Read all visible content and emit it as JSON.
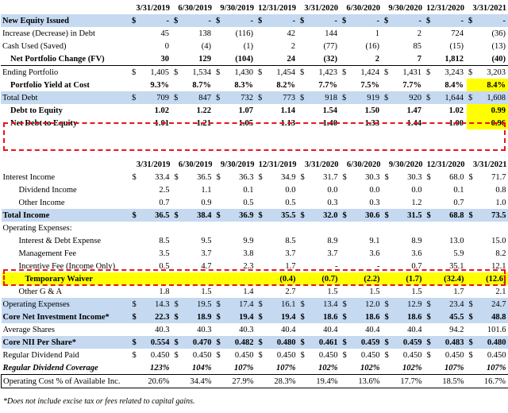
{
  "headers": [
    "3/31/2019",
    "6/30/2019",
    "9/30/2019",
    "12/31/2019",
    "3/31/2020",
    "6/30/2020",
    "9/30/2020",
    "12/31/2020",
    "3/31/2021"
  ],
  "section1": [
    {
      "label": "New Equity Issued",
      "cs": [
        "$",
        "$",
        "$",
        "$",
        "$",
        "$",
        "$",
        "$",
        "$"
      ],
      "values": [
        "-",
        "-",
        "-",
        "-",
        "-",
        "-",
        "-",
        "-",
        "-"
      ],
      "style": "blue b",
      "indent": 0
    },
    {
      "label": "Increase (Decrease) in Debt",
      "cs": [
        "",
        "",
        "",
        "",
        "",
        "",
        "",
        "",
        ""
      ],
      "values": [
        "45",
        "138",
        "(116)",
        "42",
        "144",
        "1",
        "2",
        "724",
        "(36)"
      ],
      "style": "",
      "indent": 0
    },
    {
      "label": "Cash Used (Saved)",
      "cs": [
        "",
        "",
        "",
        "",
        "",
        "",
        "",
        "",
        ""
      ],
      "values": [
        "0",
        "(4)",
        "(1)",
        "2",
        "(77)",
        "(16)",
        "85",
        "(15)",
        "(13)"
      ],
      "style": "",
      "indent": 0
    },
    {
      "label": "Net Portfolio Change (FV)",
      "cs": [
        "",
        "",
        "",
        "",
        "",
        "",
        "",
        "",
        ""
      ],
      "values": [
        "30",
        "129",
        "(104)",
        "24",
        "(32)",
        "2",
        "7",
        "1,812",
        "(40)"
      ],
      "style": "b",
      "indent": 1
    },
    {
      "label": "Ending Portfolio",
      "cs": [
        "$",
        "$",
        "$",
        "$",
        "$",
        "$",
        "$",
        "$",
        "$"
      ],
      "values": [
        "1,405",
        "1,534",
        "1,430",
        "1,454",
        "1,423",
        "1,424",
        "1,431",
        "3,243",
        "3,203"
      ],
      "style": "bt",
      "indent": 0
    },
    {
      "label": "Portfolio Yield at Cost",
      "cs": [
        "",
        "",
        "",
        "",
        "",
        "",
        "",
        "",
        ""
      ],
      "values": [
        "9.3%",
        "8.7%",
        "8.3%",
        "8.2%",
        "7.7%",
        "7.5%",
        "7.7%",
        "8.4%",
        "8.4%"
      ],
      "style": "b",
      "indent": 1,
      "hl_last": true
    },
    {
      "label": "Total Debt",
      "cs": [
        "$",
        "$",
        "$",
        "$",
        "$",
        "$",
        "$",
        "$",
        "$"
      ],
      "values": [
        "709",
        "847",
        "732",
        "773",
        "918",
        "919",
        "920",
        "1,644",
        "1,608"
      ],
      "style": "blue",
      "indent": 0
    },
    {
      "label": "Debt to Equity",
      "cs": [
        "",
        "",
        "",
        "",
        "",
        "",
        "",
        "",
        ""
      ],
      "values": [
        "1.02",
        "1.22",
        "1.07",
        "1.14",
        "1.54",
        "1.50",
        "1.47",
        "1.02",
        "0.99"
      ],
      "style": "b",
      "indent": 1,
      "hl_last": true
    },
    {
      "label": "Net Debt to Equity",
      "cs": [
        "",
        "",
        "",
        "",
        "",
        "",
        "",
        "",
        ""
      ],
      "values": [
        "1.01",
        "1.21",
        "1.05",
        "1.13",
        "1.40",
        "1.33",
        "1.44",
        "1.00",
        "0.96"
      ],
      "style": "b",
      "indent": 1,
      "hl_last": true
    }
  ],
  "section2": [
    {
      "label": "Interest Income",
      "cs": [
        "$",
        "$",
        "$",
        "$",
        "$",
        "$",
        "$",
        "$",
        "$"
      ],
      "values": [
        "33.4",
        "36.5",
        "36.3",
        "34.9",
        "31.7",
        "30.3",
        "30.3",
        "68.0",
        "71.7"
      ],
      "style": "",
      "indent": 0
    },
    {
      "label": "Dividend Income",
      "cs": [
        "",
        "",
        "",
        "",
        "",
        "",
        "",
        "",
        ""
      ],
      "values": [
        "2.5",
        "1.1",
        "0.1",
        "0.0",
        "0.0",
        "0.0",
        "0.0",
        "0.1",
        "0.8"
      ],
      "style": "",
      "indent": 2
    },
    {
      "label": "Other Income",
      "cs": [
        "",
        "",
        "",
        "",
        "",
        "",
        "",
        "",
        ""
      ],
      "values": [
        "0.7",
        "0.9",
        "0.5",
        "0.5",
        "0.3",
        "0.3",
        "1.2",
        "0.7",
        "1.0"
      ],
      "style": "",
      "indent": 2
    },
    {
      "label": "Total Income",
      "cs": [
        "$",
        "$",
        "$",
        "$",
        "$",
        "$",
        "$",
        "$",
        "$"
      ],
      "values": [
        "36.5",
        "38.4",
        "36.9",
        "35.5",
        "32.0",
        "30.6",
        "31.5",
        "68.8",
        "73.5"
      ],
      "style": "blue b",
      "indent": 0
    },
    {
      "label": "Operating Expenses:",
      "cs": [
        "",
        "",
        "",
        "",
        "",
        "",
        "",
        "",
        ""
      ],
      "values": [
        "",
        "",
        "",
        "",
        "",
        "",
        "",
        "",
        ""
      ],
      "style": "",
      "indent": 0
    },
    {
      "label": "Interest & Debt Expense",
      "cs": [
        "",
        "",
        "",
        "",
        "",
        "",
        "",
        "",
        ""
      ],
      "values": [
        "8.5",
        "9.5",
        "9.9",
        "8.5",
        "8.9",
        "9.1",
        "8.9",
        "13.0",
        "15.0"
      ],
      "style": "",
      "indent": 2
    },
    {
      "label": "Management Fee",
      "cs": [
        "",
        "",
        "",
        "",
        "",
        "",
        "",
        "",
        ""
      ],
      "values": [
        "3.5",
        "3.7",
        "3.8",
        "3.7",
        "3.7",
        "3.6",
        "3.6",
        "5.9",
        "8.2"
      ],
      "style": "",
      "indent": 2
    },
    {
      "label": "Incentive Fee (Income Only)",
      "cs": [
        "",
        "",
        "",
        "",
        "",
        "",
        "",
        "",
        ""
      ],
      "values": [
        "0.5",
        "4.7",
        "2.3",
        "1.7",
        "-",
        "-",
        "0.7",
        "35.1",
        "12.1"
      ],
      "style": "",
      "indent": 2
    },
    {
      "label": "Temporary Waiver",
      "cs": [
        "",
        "",
        "",
        "",
        "",
        "",
        "",
        "",
        ""
      ],
      "values": [
        "",
        "",
        "",
        "(0.4)",
        "(0.7)",
        "(2.2)",
        "(1.7)",
        "(32.4)",
        "(12.6)"
      ],
      "style": "hlrow b",
      "indent": 3
    },
    {
      "label": "Other G & A",
      "cs": [
        "",
        "",
        "",
        "",
        "",
        "",
        "",
        "",
        ""
      ],
      "values": [
        "1.8",
        "1.5",
        "1.4",
        "2.7",
        "1.5",
        "1.5",
        "1.5",
        "1.7",
        "2.1"
      ],
      "style": "",
      "indent": 2
    },
    {
      "label": "Operating Expenses",
      "cs": [
        "$",
        "$",
        "$",
        "$",
        "$",
        "$",
        "$",
        "$",
        "$"
      ],
      "values": [
        "14.3",
        "19.5",
        "17.4",
        "16.1",
        "13.4",
        "12.0",
        "12.9",
        "23.4",
        "24.7"
      ],
      "style": "blue",
      "indent": 0
    },
    {
      "label": "Core Net Investment Income*",
      "cs": [
        "$",
        "$",
        "$",
        "$",
        "$",
        "$",
        "$",
        "$",
        "$"
      ],
      "values": [
        "22.3",
        "18.9",
        "19.4",
        "19.4",
        "18.6",
        "18.6",
        "18.6",
        "45.5",
        "48.8"
      ],
      "style": "blue b",
      "indent": 0
    },
    {
      "label": "Average Shares",
      "cs": [
        "",
        "",
        "",
        "",
        "",
        "",
        "",
        "",
        ""
      ],
      "values": [
        "40.3",
        "40.3",
        "40.3",
        "40.4",
        "40.4",
        "40.4",
        "40.4",
        "94.2",
        "101.6"
      ],
      "style": "",
      "indent": 0
    },
    {
      "label": "Core NII Per Share*",
      "cs": [
        "$",
        "$",
        "$",
        "$",
        "$",
        "$",
        "$",
        "$",
        "$"
      ],
      "values": [
        "0.554",
        "0.470",
        "0.482",
        "0.480",
        "0.461",
        "0.459",
        "0.459",
        "0.483",
        "0.480"
      ],
      "style": "blue b",
      "indent": 0
    },
    {
      "label": "Regular Dividend Paid",
      "cs": [
        "$",
        "$",
        "$",
        "$",
        "$",
        "$",
        "$",
        "$",
        "$"
      ],
      "values": [
        "0.450",
        "0.450",
        "0.450",
        "0.450",
        "0.450",
        "0.450",
        "0.450",
        "0.450",
        "0.450"
      ],
      "style": "",
      "indent": 0
    },
    {
      "label": "Regular Dividend Coverage",
      "cs": [
        "",
        "",
        "",
        "",
        "",
        "",
        "",
        "",
        ""
      ],
      "values": [
        "123%",
        "104%",
        "107%",
        "107%",
        "102%",
        "102%",
        "102%",
        "107%",
        "107%"
      ],
      "style": "b i",
      "indent": 0
    },
    {
      "label": "Operating Cost % of Available Inc.",
      "cs": [
        "",
        "",
        "",
        "",
        "",
        "",
        "",
        "",
        ""
      ],
      "values": [
        "20.6%",
        "34.4%",
        "27.9%",
        "28.3%",
        "19.4%",
        "13.6%",
        "17.7%",
        "18.5%",
        "16.7%"
      ],
      "style": "boxed",
      "indent": 0
    }
  ],
  "footnote": "*Does not include excise tax or fees related to capital gains."
}
